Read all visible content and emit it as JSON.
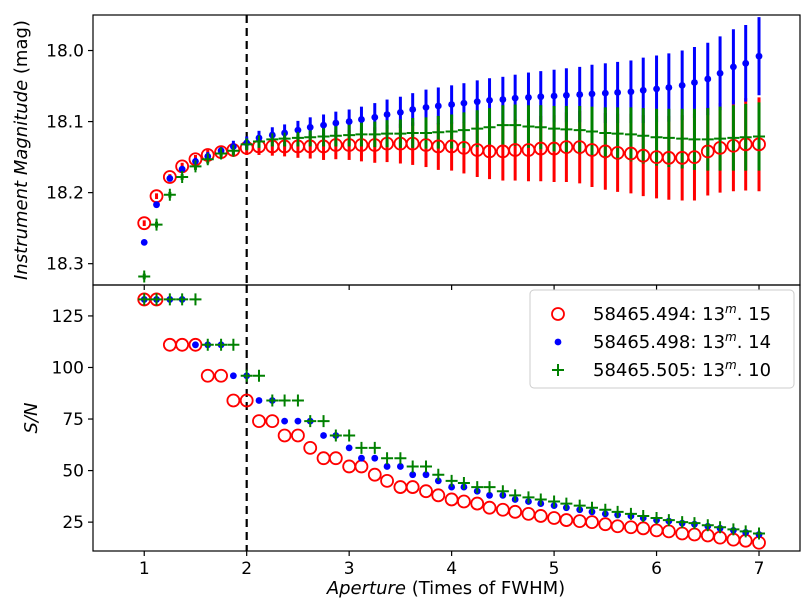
{
  "chart_data": [
    {
      "type": "scatter",
      "panel": "top",
      "title": "",
      "xlabel": "",
      "ylabel_italic": "Instrument Magnitude",
      "ylabel_rest": " (mag)",
      "y_inverted": true,
      "xlim": [
        0.5,
        7.4
      ],
      "ylim": [
        18.33,
        17.95
      ],
      "yticks": [
        18.0,
        18.1,
        18.2,
        18.3
      ],
      "ytick_labels": [
        "18.0",
        "18.1",
        "18.2",
        "18.3"
      ],
      "reference_line": {
        "x": 2,
        "style": "dashed",
        "color": "#000000"
      },
      "series": [
        {
          "name": "58465.494",
          "marker": "open-circle",
          "color": "#ff0000",
          "x": [
            1.0,
            1.12,
            1.25,
            1.37,
            1.5,
            1.62,
            1.75,
            1.87,
            2.0,
            2.12,
            2.25,
            2.37,
            2.5,
            2.62,
            2.75,
            2.87,
            3.0,
            3.12,
            3.25,
            3.37,
            3.5,
            3.62,
            3.75,
            3.87,
            4.0,
            4.12,
            4.25,
            4.37,
            4.5,
            4.62,
            4.75,
            4.87,
            5.0,
            5.12,
            5.25,
            5.37,
            5.5,
            5.62,
            5.75,
            5.87,
            6.0,
            6.12,
            6.25,
            6.37,
            6.5,
            6.62,
            6.75,
            6.87,
            7.0
          ],
          "y": [
            18.243,
            18.205,
            18.178,
            18.163,
            18.153,
            18.147,
            18.143,
            18.14,
            18.137,
            18.135,
            18.135,
            18.135,
            18.135,
            18.135,
            18.135,
            18.133,
            18.133,
            18.133,
            18.133,
            18.131,
            18.131,
            18.131,
            18.133,
            18.135,
            18.135,
            18.137,
            18.14,
            18.142,
            18.142,
            18.14,
            18.14,
            18.138,
            18.138,
            18.136,
            18.136,
            18.14,
            18.142,
            18.144,
            18.145,
            18.148,
            18.15,
            18.151,
            18.151,
            18.15,
            18.142,
            18.137,
            18.134,
            18.132,
            18.132
          ],
          "yerr": [
            0.004,
            0.004,
            0.004,
            0.005,
            0.006,
            0.007,
            0.008,
            0.009,
            0.01,
            0.012,
            0.013,
            0.014,
            0.016,
            0.017,
            0.019,
            0.02,
            0.021,
            0.023,
            0.025,
            0.026,
            0.028,
            0.03,
            0.031,
            0.033,
            0.034,
            0.036,
            0.038,
            0.039,
            0.041,
            0.043,
            0.044,
            0.046,
            0.047,
            0.049,
            0.051,
            0.052,
            0.054,
            0.055,
            0.056,
            0.057,
            0.058,
            0.059,
            0.06,
            0.061,
            0.062,
            0.063,
            0.064,
            0.065,
            0.066
          ]
        },
        {
          "name": "58465.498",
          "marker": "filled-circle",
          "color": "#0000ff",
          "x": [
            1.0,
            1.12,
            1.25,
            1.37,
            1.5,
            1.62,
            1.75,
            1.87,
            2.0,
            2.12,
            2.25,
            2.37,
            2.5,
            2.62,
            2.75,
            2.87,
            3.0,
            3.12,
            3.25,
            3.37,
            3.5,
            3.62,
            3.75,
            3.87,
            4.0,
            4.12,
            4.25,
            4.37,
            4.5,
            4.62,
            4.75,
            4.87,
            5.0,
            5.12,
            5.25,
            5.37,
            5.5,
            5.62,
            5.75,
            5.87,
            6.0,
            6.12,
            6.25,
            6.37,
            6.5,
            6.62,
            6.75,
            6.87,
            7.0
          ],
          "y": [
            18.27,
            18.217,
            18.18,
            18.167,
            18.156,
            18.149,
            18.141,
            18.135,
            18.13,
            18.123,
            18.119,
            18.116,
            18.112,
            18.108,
            18.105,
            18.102,
            18.1,
            18.097,
            18.094,
            18.09,
            18.087,
            18.083,
            18.08,
            18.078,
            18.076,
            18.074,
            18.072,
            18.07,
            18.069,
            18.067,
            18.066,
            18.065,
            18.064,
            18.063,
            18.062,
            18.061,
            18.06,
            18.059,
            18.058,
            18.056,
            18.054,
            18.052,
            18.049,
            18.045,
            18.04,
            18.032,
            18.023,
            18.018,
            18.008
          ],
          "yerr": [
            0.004,
            0.004,
            0.004,
            0.004,
            0.005,
            0.006,
            0.007,
            0.008,
            0.009,
            0.01,
            0.011,
            0.012,
            0.013,
            0.014,
            0.015,
            0.016,
            0.017,
            0.018,
            0.02,
            0.021,
            0.022,
            0.023,
            0.025,
            0.026,
            0.027,
            0.028,
            0.03,
            0.031,
            0.032,
            0.033,
            0.035,
            0.036,
            0.037,
            0.038,
            0.039,
            0.041,
            0.042,
            0.043,
            0.044,
            0.046,
            0.047,
            0.048,
            0.049,
            0.05,
            0.051,
            0.052,
            0.053,
            0.054,
            0.055
          ]
        },
        {
          "name": "58465.505",
          "marker": "plus",
          "color": "#008000",
          "x": [
            1.0,
            1.12,
            1.25,
            1.37,
            1.5,
            1.62,
            1.75,
            1.87,
            2.0,
            2.12,
            2.25,
            2.37,
            2.5,
            2.62,
            2.75,
            2.87,
            3.0,
            3.12,
            3.25,
            3.37,
            3.5,
            3.62,
            3.75,
            3.87,
            4.0,
            4.12,
            4.25,
            4.37,
            4.5,
            4.62,
            4.75,
            4.87,
            5.0,
            5.12,
            5.25,
            5.37,
            5.5,
            5.62,
            5.75,
            5.87,
            6.0,
            6.12,
            6.25,
            6.37,
            6.5,
            6.62,
            6.75,
            6.87,
            7.0
          ],
          "y": [
            18.318,
            18.245,
            18.203,
            18.178,
            18.163,
            18.153,
            18.145,
            18.141,
            18.132,
            18.128,
            18.125,
            18.124,
            18.123,
            18.122,
            18.121,
            18.12,
            18.119,
            18.118,
            18.118,
            18.117,
            18.117,
            18.116,
            18.116,
            18.115,
            18.114,
            18.112,
            18.11,
            18.108,
            18.105,
            18.105,
            18.107,
            18.108,
            18.11,
            18.111,
            18.112,
            18.114,
            18.116,
            18.117,
            18.118,
            18.12,
            18.122,
            18.123,
            18.124,
            18.125,
            18.125,
            18.124,
            18.123,
            18.122,
            18.121
          ],
          "yerr": [
            0.004,
            0.004,
            0.004,
            0.004,
            0.005,
            0.006,
            0.006,
            0.007,
            0.008,
            0.009,
            0.01,
            0.011,
            0.012,
            0.013,
            0.014,
            0.015,
            0.016,
            0.017,
            0.018,
            0.019,
            0.02,
            0.021,
            0.022,
            0.023,
            0.024,
            0.025,
            0.026,
            0.027,
            0.028,
            0.029,
            0.03,
            0.031,
            0.032,
            0.033,
            0.034,
            0.035,
            0.036,
            0.037,
            0.038,
            0.039,
            0.04,
            0.041,
            0.042,
            0.043,
            0.044,
            0.045,
            0.046,
            0.047,
            0.048
          ]
        }
      ]
    },
    {
      "type": "scatter",
      "panel": "bottom",
      "title": "",
      "xlabel_italic": "Aperture",
      "xlabel_rest": " (Times of FWHM)",
      "ylabel": "S/N",
      "xlim": [
        0.5,
        7.4
      ],
      "ylim": [
        11,
        140
      ],
      "xticks": [
        1,
        2,
        3,
        4,
        5,
        6,
        7
      ],
      "xtick_labels": [
        "1",
        "2",
        "3",
        "4",
        "5",
        "6",
        "7"
      ],
      "yticks": [
        25,
        50,
        75,
        100,
        125
      ],
      "ytick_labels": [
        "25",
        "50",
        "75",
        "100",
        "125"
      ],
      "reference_line": {
        "x": 2,
        "style": "dashed",
        "color": "#000000"
      },
      "legend": {
        "placement": "upper-right",
        "entries": [
          {
            "label": "58465.494: 13",
            "sup": "m",
            "tail": ". 15",
            "marker": "open-circle",
            "color": "#ff0000"
          },
          {
            "label": "58465.498: 13",
            "sup": "m",
            "tail": ". 14",
            "marker": "filled-circle",
            "color": "#0000ff"
          },
          {
            "label": "58465.505: 13",
            "sup": "m",
            "tail": ". 10",
            "marker": "plus",
            "color": "#008000"
          }
        ]
      },
      "series": [
        {
          "name": "58465.494",
          "marker": "open-circle",
          "color": "#ff0000",
          "x": [
            1.0,
            1.12,
            1.25,
            1.37,
            1.5,
            1.62,
            1.75,
            1.87,
            2.0,
            2.12,
            2.25,
            2.37,
            2.5,
            2.62,
            2.75,
            2.87,
            3.0,
            3.12,
            3.25,
            3.37,
            3.5,
            3.62,
            3.75,
            3.87,
            4.0,
            4.12,
            4.25,
            4.37,
            4.5,
            4.62,
            4.75,
            4.87,
            5.0,
            5.12,
            5.25,
            5.37,
            5.5,
            5.62,
            5.75,
            5.87,
            6.0,
            6.12,
            6.25,
            6.37,
            6.5,
            6.62,
            6.75,
            6.87,
            7.0
          ],
          "y": [
            133,
            133,
            111,
            111,
            111,
            96,
            96,
            84,
            84,
            74,
            74,
            67,
            67,
            61,
            56,
            56,
            52,
            52,
            48,
            45,
            42,
            42,
            40,
            38,
            36,
            35,
            34,
            32,
            31,
            30,
            29,
            28,
            27,
            26,
            25.5,
            25,
            24,
            23,
            22.5,
            22,
            21,
            20.5,
            19.5,
            19,
            18.5,
            17.5,
            16.5,
            16,
            15
          ]
        },
        {
          "name": "58465.498",
          "marker": "filled-circle",
          "color": "#0000ff",
          "x": [
            1.0,
            1.12,
            1.25,
            1.37,
            1.5,
            1.62,
            1.75,
            1.87,
            2.0,
            2.12,
            2.25,
            2.37,
            2.5,
            2.62,
            2.75,
            2.87,
            3.0,
            3.12,
            3.25,
            3.37,
            3.5,
            3.62,
            3.75,
            3.87,
            4.0,
            4.12,
            4.25,
            4.37,
            4.5,
            4.62,
            4.75,
            4.87,
            5.0,
            5.12,
            5.25,
            5.37,
            5.5,
            5.62,
            5.75,
            5.87,
            6.0,
            6.12,
            6.25,
            6.37,
            6.5,
            6.62,
            6.75,
            6.87,
            7.0
          ],
          "y": [
            133,
            133,
            133,
            133,
            111,
            111,
            111,
            96,
            96,
            84,
            84,
            74,
            74,
            74,
            67,
            67,
            61,
            56,
            56,
            52,
            52,
            48,
            48,
            45,
            42,
            42,
            40,
            38,
            38,
            36,
            35,
            34,
            33,
            32,
            31,
            30,
            29,
            28.5,
            28,
            27,
            26,
            25.5,
            24.5,
            24,
            23,
            22,
            21,
            20,
            19
          ]
        },
        {
          "name": "58465.505",
          "marker": "plus",
          "color": "#008000",
          "x": [
            1.0,
            1.12,
            1.25,
            1.37,
            1.5,
            1.62,
            1.75,
            1.87,
            2.0,
            2.12,
            2.25,
            2.37,
            2.5,
            2.62,
            2.75,
            2.87,
            3.0,
            3.12,
            3.25,
            3.37,
            3.5,
            3.62,
            3.75,
            3.87,
            4.0,
            4.12,
            4.25,
            4.37,
            4.5,
            4.62,
            4.75,
            4.87,
            5.0,
            5.12,
            5.25,
            5.37,
            5.5,
            5.62,
            5.75,
            5.87,
            6.0,
            6.12,
            6.25,
            6.37,
            6.5,
            6.62,
            6.75,
            6.87,
            7.0
          ],
          "y": [
            133,
            133,
            133,
            133,
            133,
            111,
            111,
            111,
            96,
            96,
            84,
            84,
            84,
            74,
            74,
            67,
            67,
            61,
            61,
            56,
            56,
            52,
            52,
            48,
            45,
            44,
            42,
            42,
            40,
            38,
            37,
            36,
            35,
            34,
            33,
            32,
            31,
            30,
            29,
            28,
            27,
            26,
            25,
            24.5,
            23.5,
            22.5,
            21.5,
            20.5,
            19.5
          ]
        }
      ]
    }
  ]
}
